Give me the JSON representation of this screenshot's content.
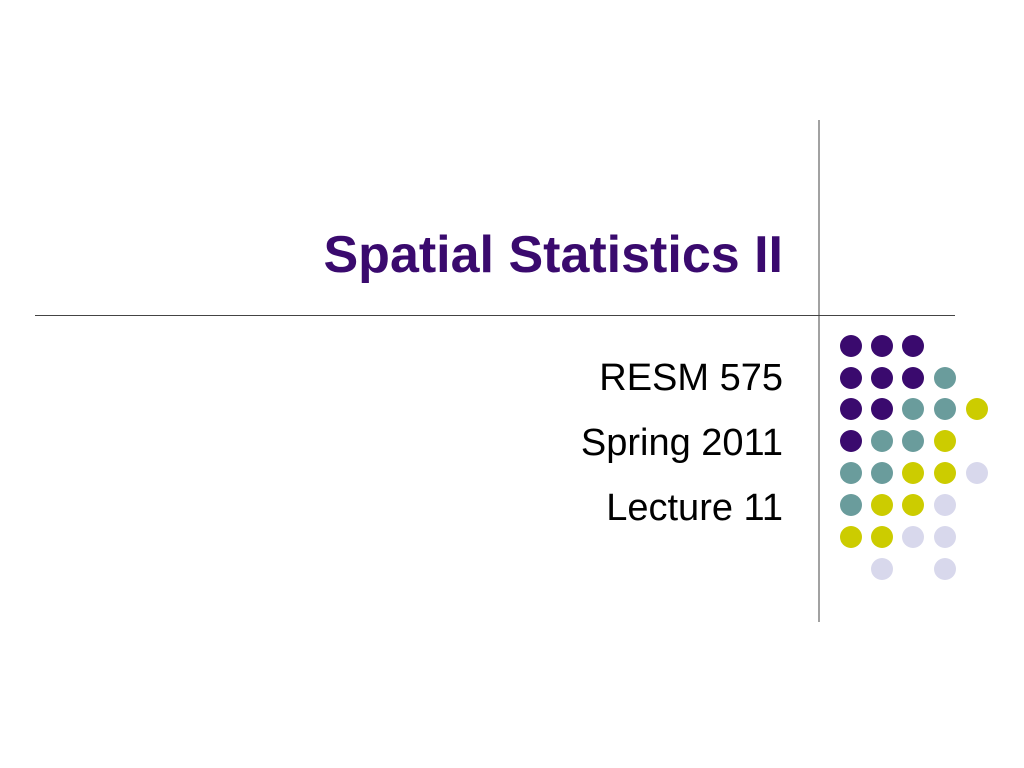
{
  "slide": {
    "title": "Spatial Statistics II",
    "subtitle": [
      "RESM 575",
      "Spring 2011",
      "Lecture 11"
    ]
  }
}
